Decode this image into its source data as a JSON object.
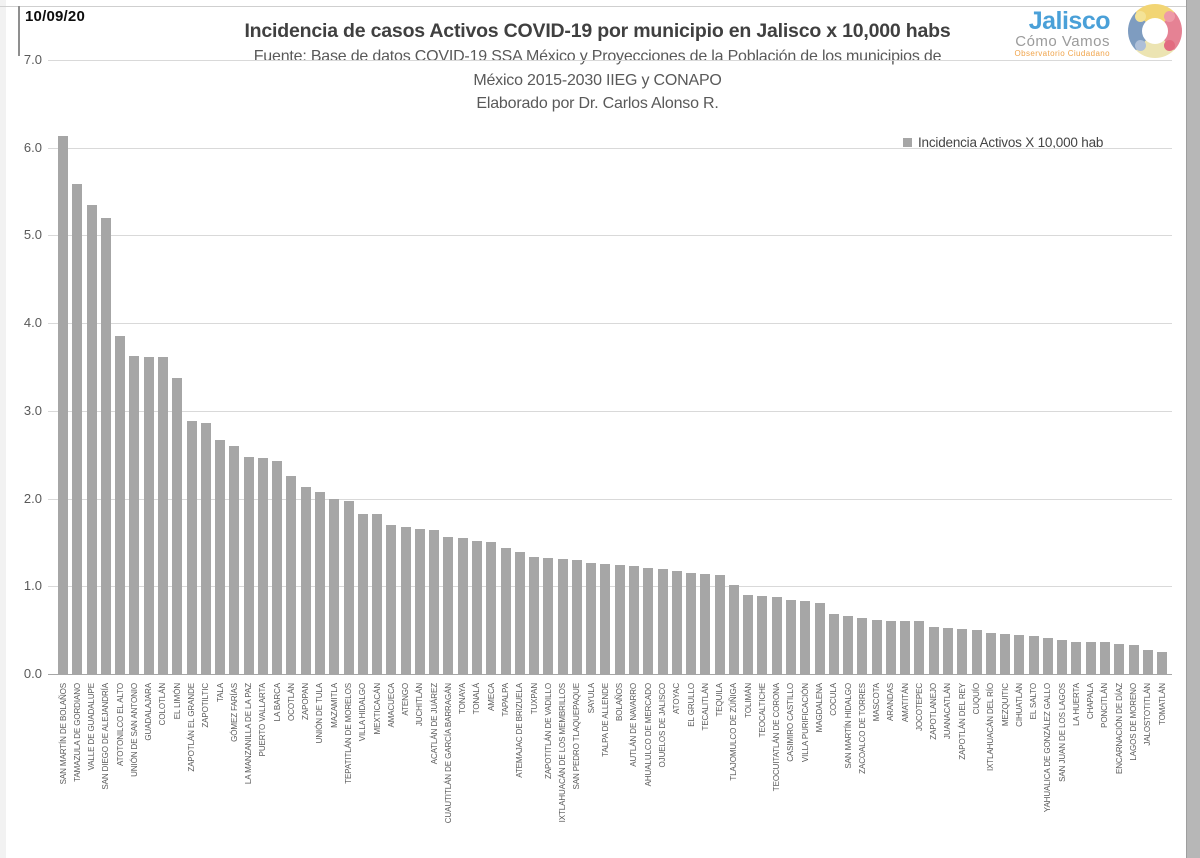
{
  "page": {
    "date": "10/09/20"
  },
  "header": {
    "title": "Incidencia de casos Activos COVID-19 por municipio en Jalisco x 10,000 habs",
    "subtitle_line1": "Fuente: Base de datos COVID-19 SSA México y Proyecciones de la Población de los municipios de",
    "subtitle_line2": "México 2015-2030 IIEG y CONAPO",
    "subtitle_line3": "Elaborado por Dr. Carlos Alonso R."
  },
  "logo": {
    "line1": "Jalisco",
    "line2": "Cómo Vamos",
    "line3": "Observatorio Ciudadano"
  },
  "legend": {
    "label": "Incidencia Activos X 10,000 hab",
    "marker_color": "#a6a6a6"
  },
  "colors": {
    "bar": "#a6a6a6",
    "gridline": "#d9d9d9",
    "axis_text": "#595959",
    "title_text": "#404040",
    "logo_blue": "#4aa0d8",
    "logo_orange": "#f0a44b"
  },
  "chart_data": {
    "type": "bar",
    "title": "Incidencia de casos Activos COVID-19 por municipio en Jalisco x 10,000 habs",
    "xlabel": "",
    "ylabel": "",
    "ylim": [
      0,
      7
    ],
    "ytick_step": 1,
    "ytick_labels": [
      "0.0",
      "1.0",
      "2.0",
      "3.0",
      "4.0",
      "5.0",
      "6.0",
      "7.0"
    ],
    "grid": true,
    "legend_position": "top-right",
    "series_name": "Incidencia Activos X 10,000 hab",
    "categories": [
      "SAN MARTÍN DE BOLAÑOS",
      "TAMAZULA DE GORDIANO",
      "VALLE DE GUADALUPE",
      "SAN DIEGO DE ALEJANDRÍA",
      "ATOTONILCO EL ALTO",
      "UNIÓN DE SAN ANTONIO",
      "GUADALAJARA",
      "COLOTLÁN",
      "EL LIMÓN",
      "ZAPOTLÁN EL GRANDE",
      "ZAPOTILTIC",
      "TALA",
      "GÓMEZ FARÍAS",
      "LA MANZANILLA DE LA PAZ",
      "PUERTO VALLARTA",
      "LA BARCA",
      "OCOTLÁN",
      "ZAPOPAN",
      "UNIÓN DE TULA",
      "MAZAMITLA",
      "TEPATITLÁN DE MORELOS",
      "VILLA HIDALGO",
      "MEXTICACÁN",
      "AMACUECA",
      "ATENGO",
      "JUCHITLÁN",
      "ACATLÁN DE JUÁREZ",
      "CUAUTITLÁN DE GARCÍA BARRAGÁN",
      "TONAYA",
      "TONALÁ",
      "AMECA",
      "TAPALPA",
      "ATEMAJAC DE BRIZUELA",
      "TUXPAN",
      "ZAPOTITLÁN DE VADILLO",
      "IXTLAHUACÁN DE LOS MEMBRILLOS",
      "SAN PEDRO TLAQUEPAQUE",
      "SAYULA",
      "TALPA DE ALLENDE",
      "BOLAÑOS",
      "AUTLÁN DE NAVARRO",
      "AHUALULCO DE MERCADO",
      "OJUELOS DE JALISCO",
      "ATOYAC",
      "EL GRULLO",
      "TECALITLÁN",
      "TEQUILA",
      "TLAJOMULCO DE ZÚÑIGA",
      "TOLIMÁN",
      "TEOCALTICHE",
      "TEOCUITATLÁN DE CORONA",
      "CASIMIRO CASTILLO",
      "VILLA PURIFICACIÓN",
      "MAGDALENA",
      "COCULA",
      "SAN MARTÍN HIDALGO",
      "ZACOALCO DE TORRES",
      "MASCOTA",
      "ARANDAS",
      "AMATITÁN",
      "JOCOTEPEC",
      "ZAPOTLANEJO",
      "JUANACATLÁN",
      "ZAPOTLÁN DEL REY",
      "CUQUÍO",
      "IXTLAHUACÁN DEL RÍO",
      "MEZQUITIC",
      "CIHUATLÁN",
      "EL SALTO",
      "YAHUALICA DE GONZÁLEZ GALLO",
      "SAN JUAN DE LOS LAGOS",
      "LA HUERTA",
      "CHAPALA",
      "PONCITLÁN",
      "ENCARNACIÓN DE DÍAZ",
      "LAGOS DE MORENO",
      "JALOSTOTITLÁN",
      "TOMATLÁN"
    ],
    "values": [
      6.13,
      5.59,
      5.35,
      5.2,
      3.85,
      3.63,
      3.62,
      3.61,
      3.38,
      2.89,
      2.86,
      2.67,
      2.6,
      2.47,
      2.46,
      2.43,
      2.26,
      2.13,
      2.07,
      1.99,
      1.97,
      1.83,
      1.82,
      1.7,
      1.68,
      1.65,
      1.64,
      1.56,
      1.55,
      1.52,
      1.51,
      1.44,
      1.39,
      1.33,
      1.32,
      1.31,
      1.3,
      1.27,
      1.25,
      1.24,
      1.23,
      1.21,
      1.2,
      1.17,
      1.15,
      1.14,
      1.13,
      1.01,
      0.9,
      0.89,
      0.88,
      0.84,
      0.83,
      0.81,
      0.69,
      0.66,
      0.64,
      0.62,
      0.61,
      0.6,
      0.6,
      0.54,
      0.52,
      0.51,
      0.5,
      0.47,
      0.46,
      0.44,
      0.43,
      0.41,
      0.39,
      0.37,
      0.36,
      0.36,
      0.34,
      0.33,
      0.27,
      0.25
    ]
  }
}
